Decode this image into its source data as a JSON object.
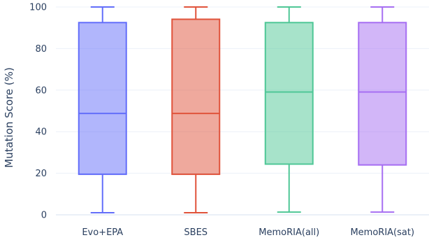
{
  "chart_data": {
    "type": "box",
    "ylabel": "Mutation Score (%)",
    "xlabel": "",
    "ylim": [
      0,
      100
    ],
    "yticks": [
      0,
      20,
      40,
      60,
      80,
      100
    ],
    "grid": true,
    "legend": "none",
    "categories": [
      "Evo+EPA",
      "SBES",
      "MemoRIA(all)",
      "MemoRIA(sat)"
    ],
    "series": [
      {
        "category": "Evo+EPA",
        "min": 1,
        "q1": 19.5,
        "median": 48.8,
        "q3": 92.5,
        "max": 100,
        "color": "#636efa"
      },
      {
        "category": "SBES",
        "min": 1,
        "q1": 19.5,
        "median": 48.8,
        "q3": 94.1,
        "max": 100,
        "color": "#e0533b"
      },
      {
        "category": "MemoRIA(all)",
        "min": 1.3,
        "q1": 24.4,
        "median": 59.1,
        "q3": 92.5,
        "max": 100,
        "color": "#4fc796"
      },
      {
        "category": "MemoRIA(sat)",
        "min": 1.3,
        "q1": 24.0,
        "median": 59.1,
        "q3": 92.5,
        "max": 100,
        "color": "#a66ef2"
      }
    ]
  }
}
